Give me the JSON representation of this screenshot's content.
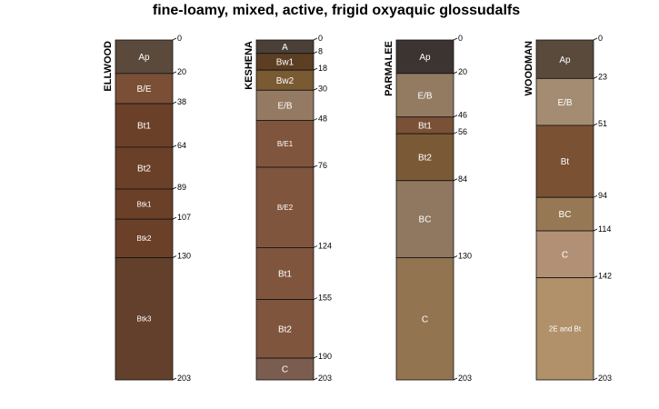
{
  "chart_data": {
    "type": "soil-profile",
    "title": "fine-loamy, mixed, active, frigid oxyaquic glossudalfs",
    "depth_max": 203,
    "profiles": [
      {
        "name": "ELLWOOD",
        "horizons": [
          {
            "name": "Ap",
            "top": 0,
            "bottom": 20,
            "color": "#5b4a3c"
          },
          {
            "name": "B/E",
            "top": 20,
            "bottom": 38,
            "color": "#7a4f35"
          },
          {
            "name": "Bt1",
            "top": 38,
            "bottom": 64,
            "color": "#6b4029"
          },
          {
            "name": "Bt2",
            "top": 64,
            "bottom": 89,
            "color": "#6b4029"
          },
          {
            "name": "Btk1",
            "top": 89,
            "bottom": 107,
            "color": "#6b4029"
          },
          {
            "name": "Btk2",
            "top": 107,
            "bottom": 130,
            "color": "#6b4029"
          },
          {
            "name": "Btk3",
            "top": 130,
            "bottom": 203,
            "color": "#63402b"
          }
        ],
        "depth_ticks": [
          "0",
          "20",
          "38",
          "64",
          "89",
          "107",
          "130",
          "203"
        ]
      },
      {
        "name": "KESHENA",
        "horizons": [
          {
            "name": "A",
            "top": 0,
            "bottom": 8,
            "color": "#4a4038"
          },
          {
            "name": "Bw1",
            "top": 8,
            "bottom": 18,
            "color": "#5c3e22"
          },
          {
            "name": "Bw2",
            "top": 18,
            "bottom": 30,
            "color": "#7a5a32"
          },
          {
            "name": "E/B",
            "top": 30,
            "bottom": 48,
            "color": "#957a63"
          },
          {
            "name": "B/E1",
            "top": 48,
            "bottom": 76,
            "color": "#80553d"
          },
          {
            "name": "B/E2",
            "top": 76,
            "bottom": 124,
            "color": "#80553d"
          },
          {
            "name": "Bt1",
            "top": 124,
            "bottom": 155,
            "color": "#80553d"
          },
          {
            "name": "Bt2",
            "top": 155,
            "bottom": 190,
            "color": "#80553d"
          },
          {
            "name": "C",
            "top": 190,
            "bottom": 203,
            "color": "#7b5d4f"
          }
        ],
        "depth_ticks": [
          "0",
          "8",
          "18",
          "30",
          "48",
          "76",
          "124",
          "155",
          "190",
          "203"
        ]
      },
      {
        "name": "PARMALEE",
        "horizons": [
          {
            "name": "Ap",
            "top": 0,
            "bottom": 20,
            "color": "#3b3430"
          },
          {
            "name": "E/B",
            "top": 20,
            "bottom": 46,
            "color": "#937b62"
          },
          {
            "name": "Bt1",
            "top": 46,
            "bottom": 56,
            "color": "#7a5036"
          },
          {
            "name": "Bt2",
            "top": 56,
            "bottom": 84,
            "color": "#7a5a36"
          },
          {
            "name": "BC",
            "top": 84,
            "bottom": 130,
            "color": "#8f7760"
          },
          {
            "name": "C",
            "top": 130,
            "bottom": 203,
            "color": "#927450"
          }
        ],
        "depth_ticks": [
          "0",
          "20",
          "46",
          "56",
          "84",
          "130",
          "203"
        ]
      },
      {
        "name": "WOODMAN",
        "horizons": [
          {
            "name": "Ap",
            "top": 0,
            "bottom": 23,
            "color": "#594a3c"
          },
          {
            "name": "E/B",
            "top": 23,
            "bottom": 51,
            "color": "#a48c73"
          },
          {
            "name": "Bt",
            "top": 51,
            "bottom": 94,
            "color": "#7b5134"
          },
          {
            "name": "BC",
            "top": 94,
            "bottom": 114,
            "color": "#977855"
          },
          {
            "name": "C",
            "top": 114,
            "bottom": 142,
            "color": "#b29075"
          },
          {
            "name": "2E and Bt",
            "top": 142,
            "bottom": 203,
            "color": "#b0916a"
          }
        ],
        "depth_ticks": [
          "0",
          "23",
          "51",
          "94",
          "114",
          "142",
          "203"
        ]
      }
    ]
  }
}
